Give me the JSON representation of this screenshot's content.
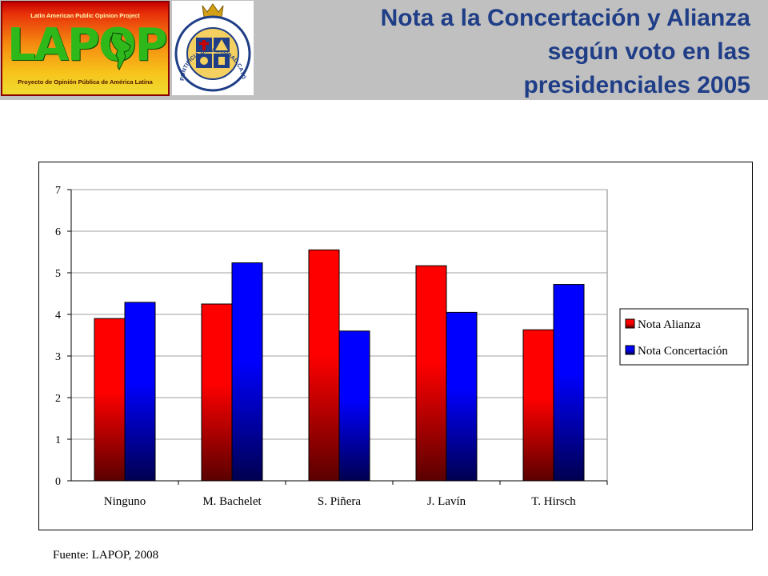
{
  "header": {
    "title_line1": "Nota a la Concertación y Alianza",
    "title_line2": "según voto en las",
    "title_line3": "presidenciales 2005"
  },
  "logos": {
    "lapop_top": "Latin American Public Opinion Project",
    "lapop_word": "LAPOP",
    "lapop_bottom": "Proyecto de Opinión Pública de América Latina",
    "seal_ring_text": "PONTIFICIA UNIVERSIDAD CATÓLICA DE CHILE"
  },
  "chart_data": {
    "type": "bar",
    "categories": [
      "Ninguno",
      "M. Bachelet",
      "S. Piñera",
      "J. Lavín",
      "T. Hirsch"
    ],
    "series": [
      {
        "name": "Nota Alianza",
        "values": [
          3.9,
          4.25,
          5.55,
          5.17,
          3.63
        ],
        "color": "#ff0000"
      },
      {
        "name": "Nota Concertación",
        "values": [
          4.29,
          5.24,
          3.6,
          4.05,
          4.72
        ],
        "color": "#0000ff"
      }
    ],
    "ylim": [
      0,
      7
    ],
    "yticks": [
      "0",
      "1",
      "2",
      "3",
      "4",
      "5",
      "6",
      "7"
    ],
    "grid": true,
    "legend_position": "right"
  },
  "footer": {
    "source": "Fuente: LAPOP, 2008"
  }
}
